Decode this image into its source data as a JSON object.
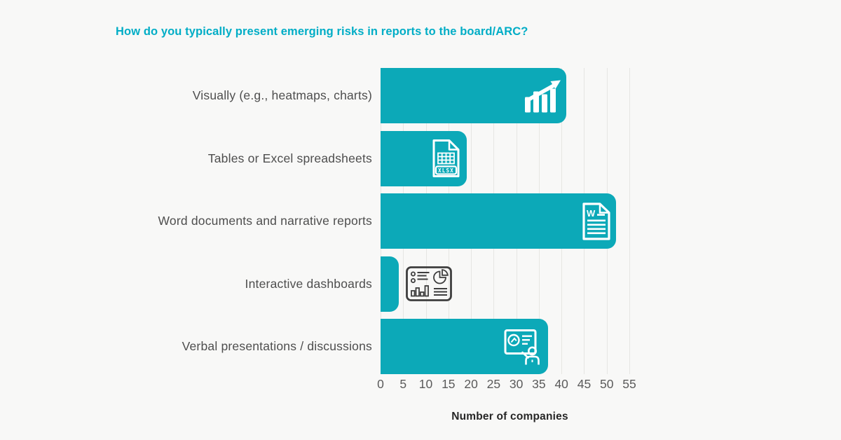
{
  "title": "How do you typically present emerging risks in reports to the board/ARC?",
  "colors": {
    "background": "#f8f8f7",
    "bar": "#0ca9b8",
    "title_text": "#00adc6",
    "gridline": "#e6e6e3",
    "category_label": "#4e4e4e",
    "tick_label": "#5b5b5b",
    "axis_title": "#262626",
    "in_bar_icon": "#ffffff",
    "outside_icon": "#3e3e3e"
  },
  "chart_data": {
    "type": "bar",
    "orientation": "horizontal",
    "title": "How do you typically present emerging risks in reports to the board/ARC?",
    "categories": [
      "Visually (e.g., heatmaps, charts)",
      "Tables or Excel spreadsheets",
      "Word documents and narrative reports",
      "Interactive dashboards",
      "Verbal presentations / discussions"
    ],
    "values": [
      41,
      19,
      52,
      4,
      37
    ],
    "icons": [
      "growth-chart-icon",
      "xlsx-file-icon",
      "word-document-icon",
      "dashboard-icon",
      "presentation-icon"
    ],
    "icon_placement": [
      "inside",
      "inside",
      "inside",
      "outside",
      "inside"
    ],
    "xlabel": "Number of companies",
    "x_ticks": [
      0,
      5,
      10,
      15,
      20,
      25,
      30,
      35,
      40,
      45,
      50,
      55
    ],
    "xlim": [
      0,
      55
    ],
    "grid": true,
    "legend": false
  }
}
